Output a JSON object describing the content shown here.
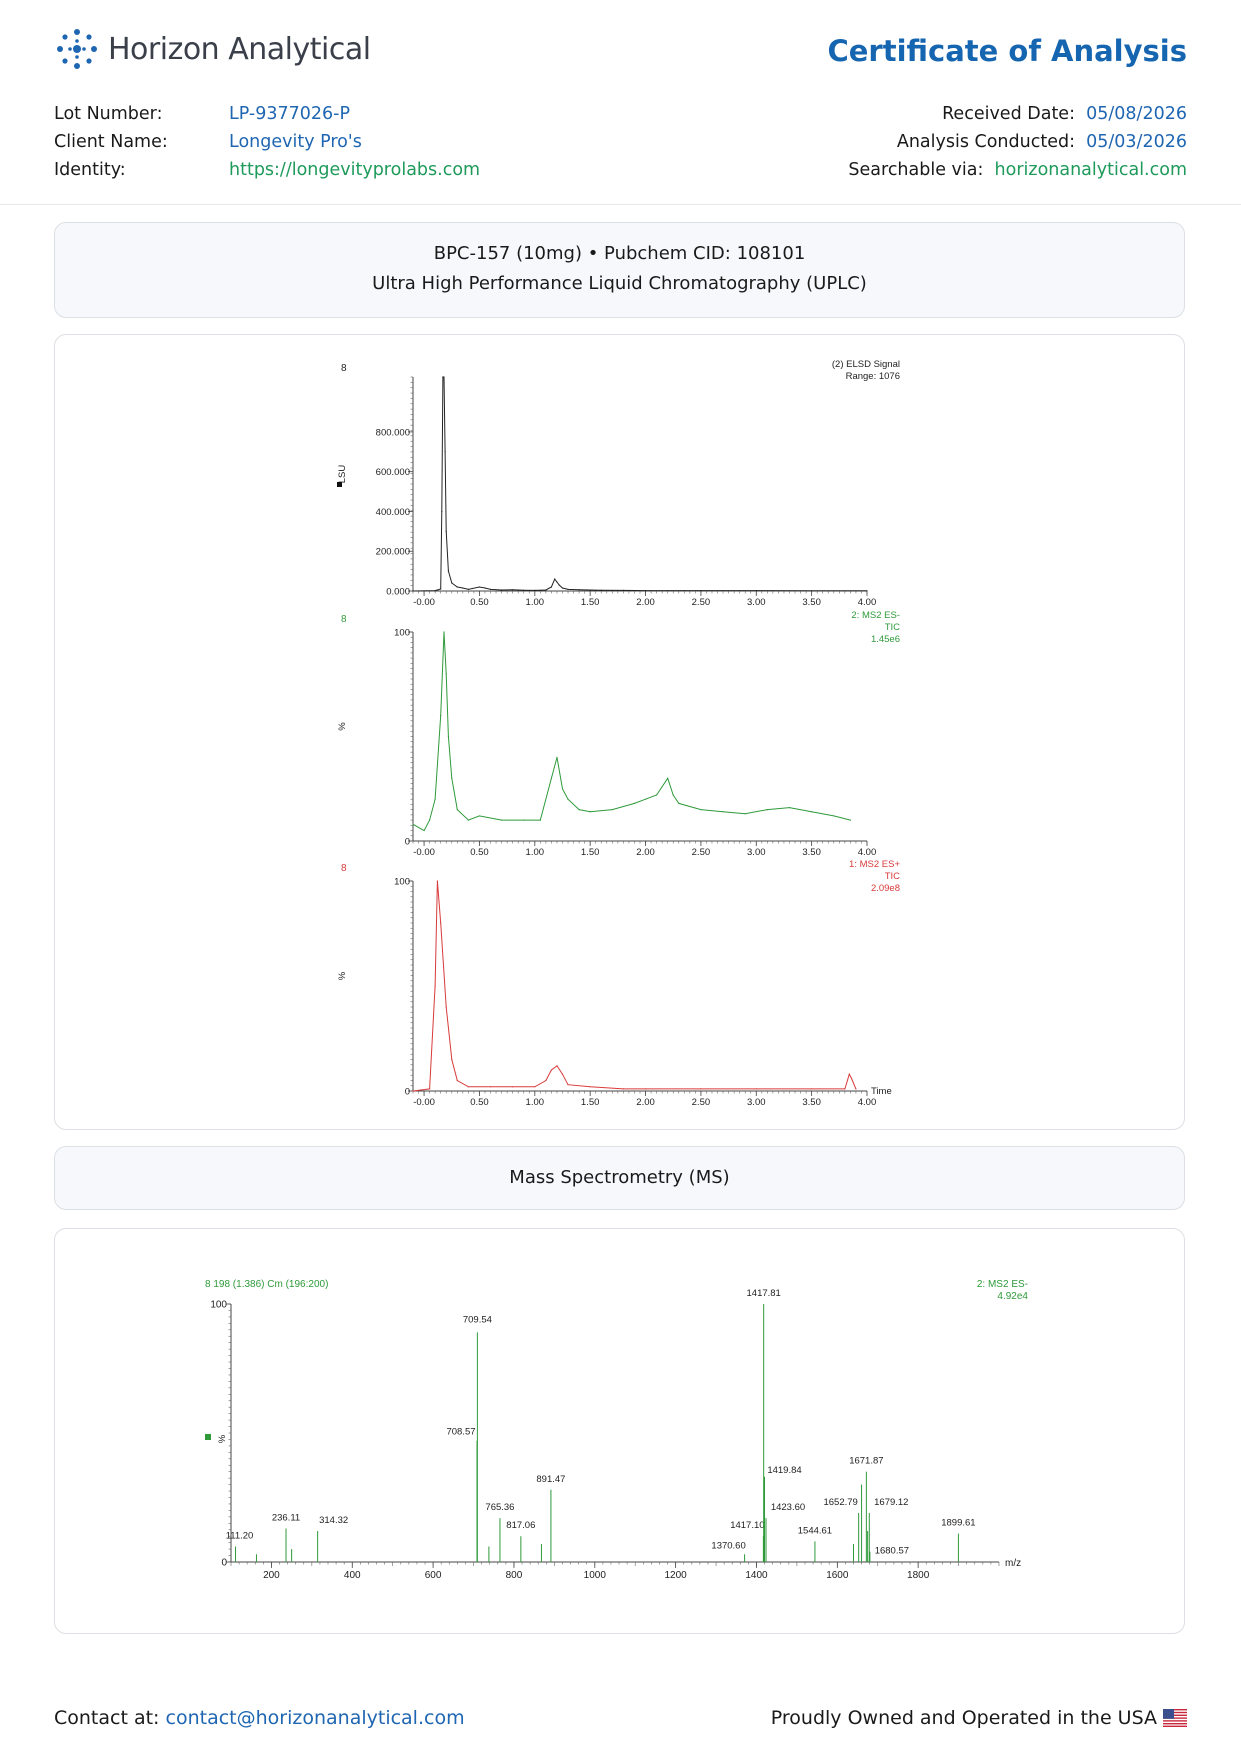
{
  "header": {
    "brand_name": "Horizon Analytical",
    "doc_title": "Certificate of Analysis",
    "lot_number_label": "Lot Number:",
    "lot_number": "LP-9377026-P",
    "client_name_label": "Client Name:",
    "client_name": "Longevity Pro's",
    "identity_label": "Identity:",
    "identity": "https://longevityprolabs.com",
    "received_date_label": "Received Date:",
    "received_date": "05/08/2026",
    "analysis_conducted_label": "Analysis Conducted:",
    "analysis_conducted": "05/03/2026",
    "searchable_label": "Searchable via:",
    "searchable": "horizonanalytical.com"
  },
  "uplc_section": {
    "line1": "BPC-157 (10mg) • Pubchem CID: 108101",
    "line2": "Ultra High Performance Liquid Chromatography (UPLC)"
  },
  "ms_section": {
    "title": "Mass Spectrometry (MS)"
  },
  "footer": {
    "contact_label": "Contact at:",
    "contact_email": "contact@horizonanalytical.com",
    "tagline": "Proudly Owned and Operated in the USA"
  },
  "colors": {
    "brand_blue": "#1565b0",
    "link_blue": "#1f66b2",
    "link_green": "#1e9a5a",
    "elsd": "#222222",
    "ms2_neg": "#2e9a3a",
    "ms2_pos": "#d93a3a"
  },
  "chart_data": [
    {
      "type": "line",
      "corner_label": "8",
      "header_lines": [
        "(2) ELSD Signal",
        "Range: 1076"
      ],
      "ylabel": "LSU",
      "ylim": [
        0,
        1076
      ],
      "xlim": [
        -0.1,
        4.0
      ],
      "x_ticks": [
        "-0.00",
        "0.50",
        "1.00",
        "1.50",
        "2.00",
        "2.50",
        "3.00",
        "3.50",
        "4.00"
      ],
      "y_ticks": [
        "0.000",
        "200.000",
        "400.000",
        "600.000",
        "800.000"
      ],
      "x": [
        -0.1,
        0.1,
        0.15,
        0.16,
        0.17,
        0.18,
        0.19,
        0.2,
        0.22,
        0.25,
        0.3,
        0.35,
        0.4,
        0.5,
        0.55,
        0.6,
        0.7,
        0.8,
        0.9,
        1.0,
        1.1,
        1.15,
        1.18,
        1.2,
        1.22,
        1.25,
        1.3,
        1.4,
        1.6,
        1.8,
        2.0,
        2.5,
        3.0,
        3.5,
        4.0
      ],
      "y": [
        0,
        2,
        10,
        400,
        1076,
        1076,
        700,
        300,
        100,
        40,
        20,
        15,
        8,
        20,
        15,
        8,
        5,
        6,
        4,
        3,
        5,
        20,
        60,
        45,
        30,
        15,
        8,
        6,
        4,
        3,
        2,
        2,
        2,
        1,
        1
      ]
    },
    {
      "type": "line",
      "corner_label": "8",
      "header_lines": [
        "2: MS2 ES-",
        "TIC",
        "1.45e6"
      ],
      "ylabel": "%",
      "ylim": [
        0,
        100
      ],
      "xlim": [
        -0.1,
        4.0
      ],
      "x_ticks": [
        "-0.00",
        "0.50",
        "1.00",
        "1.50",
        "2.00",
        "2.50",
        "3.00",
        "3.50",
        "4.00"
      ],
      "y_ticks": [
        "0",
        "100"
      ],
      "x": [
        -0.1,
        0.0,
        0.05,
        0.1,
        0.15,
        0.18,
        0.2,
        0.22,
        0.25,
        0.3,
        0.4,
        0.5,
        0.7,
        0.9,
        1.05,
        1.15,
        1.2,
        1.25,
        1.3,
        1.4,
        1.5,
        1.7,
        1.9,
        2.0,
        2.1,
        2.2,
        2.25,
        2.3,
        2.5,
        2.7,
        2.9,
        3.1,
        3.3,
        3.5,
        3.7,
        3.85
      ],
      "y": [
        8,
        5,
        10,
        20,
        60,
        100,
        80,
        50,
        30,
        15,
        10,
        12,
        10,
        10,
        10,
        30,
        40,
        25,
        20,
        15,
        14,
        15,
        18,
        20,
        22,
        30,
        22,
        18,
        15,
        14,
        13,
        15,
        16,
        14,
        12,
        10
      ]
    },
    {
      "type": "line",
      "corner_label": "8",
      "header_lines": [
        "1: MS2 ES+",
        "TIC",
        "2.09e8"
      ],
      "ylabel": "%",
      "ylim": [
        0,
        100
      ],
      "xlim": [
        -0.1,
        4.0
      ],
      "x_ticks": [
        "-0.00",
        "0.50",
        "1.00",
        "1.50",
        "2.00",
        "2.50",
        "3.00",
        "3.50",
        "4.00"
      ],
      "y_ticks": [
        "0",
        "100"
      ],
      "xlabel": "Time",
      "x": [
        -0.1,
        0.05,
        0.1,
        0.12,
        0.15,
        0.2,
        0.25,
        0.3,
        0.4,
        0.6,
        0.8,
        1.0,
        1.1,
        1.15,
        1.2,
        1.25,
        1.3,
        1.5,
        1.8,
        2.0,
        2.5,
        3.0,
        3.5,
        3.8,
        3.84,
        3.86,
        3.9
      ],
      "y": [
        0,
        1,
        50,
        100,
        80,
        40,
        15,
        5,
        2,
        2,
        2,
        2,
        5,
        10,
        12,
        8,
        3,
        2,
        1,
        1,
        1,
        1,
        1,
        1,
        8,
        6,
        1
      ]
    },
    {
      "type": "bar",
      "title": "8 198 (1.386) Cm (196:200)",
      "header_lines": [
        "2: MS2 ES-",
        "4.92e4"
      ],
      "ylabel": "%",
      "xlabel": "m/z",
      "xlim": [
        100,
        2000
      ],
      "ylim": [
        0,
        100
      ],
      "x_ticks": [
        "200",
        "400",
        "600",
        "800",
        "1000",
        "1200",
        "1400",
        "1600",
        "1800"
      ],
      "y_ticks": [
        "0",
        "100"
      ],
      "peaks": [
        {
          "mz": 111.2,
          "label": "111.20",
          "value": 6
        },
        {
          "mz": 163.0,
          "label": "",
          "value": 3
        },
        {
          "mz": 236.11,
          "label": "236.11",
          "value": 13
        },
        {
          "mz": 250.0,
          "label": "",
          "value": 5
        },
        {
          "mz": 314.32,
          "label": "314.32",
          "value": 12
        },
        {
          "mz": 708.57,
          "label": "708.57",
          "value": 47
        },
        {
          "mz": 709.54,
          "label": "709.54",
          "value": 89
        },
        {
          "mz": 738.0,
          "label": "",
          "value": 6
        },
        {
          "mz": 765.36,
          "label": "765.36",
          "value": 17
        },
        {
          "mz": 817.06,
          "label": "817.06",
          "value": 10
        },
        {
          "mz": 868.0,
          "label": "",
          "value": 7
        },
        {
          "mz": 891.47,
          "label": "891.47",
          "value": 28
        },
        {
          "mz": 1370.6,
          "label": "1370.60",
          "value": 3
        },
        {
          "mz": 1417.1,
          "label": "1417.10",
          "value": 10
        },
        {
          "mz": 1417.81,
          "label": "1417.81",
          "value": 100
        },
        {
          "mz": 1419.84,
          "label": "1419.84",
          "value": 33
        },
        {
          "mz": 1423.6,
          "label": "1423.60",
          "value": 17
        },
        {
          "mz": 1544.61,
          "label": "1544.61",
          "value": 8
        },
        {
          "mz": 1640.0,
          "label": "",
          "value": 7
        },
        {
          "mz": 1652.79,
          "label": "1652.79",
          "value": 19
        },
        {
          "mz": 1660.0,
          "label": "",
          "value": 30
        },
        {
          "mz": 1671.87,
          "label": "1671.87",
          "value": 35
        },
        {
          "mz": 1675.0,
          "label": "",
          "value": 12
        },
        {
          "mz": 1679.12,
          "label": "1679.12",
          "value": 19
        },
        {
          "mz": 1680.57,
          "label": "1680.57",
          "value": 4
        },
        {
          "mz": 1899.61,
          "label": "1899.61",
          "value": 11
        }
      ]
    }
  ]
}
